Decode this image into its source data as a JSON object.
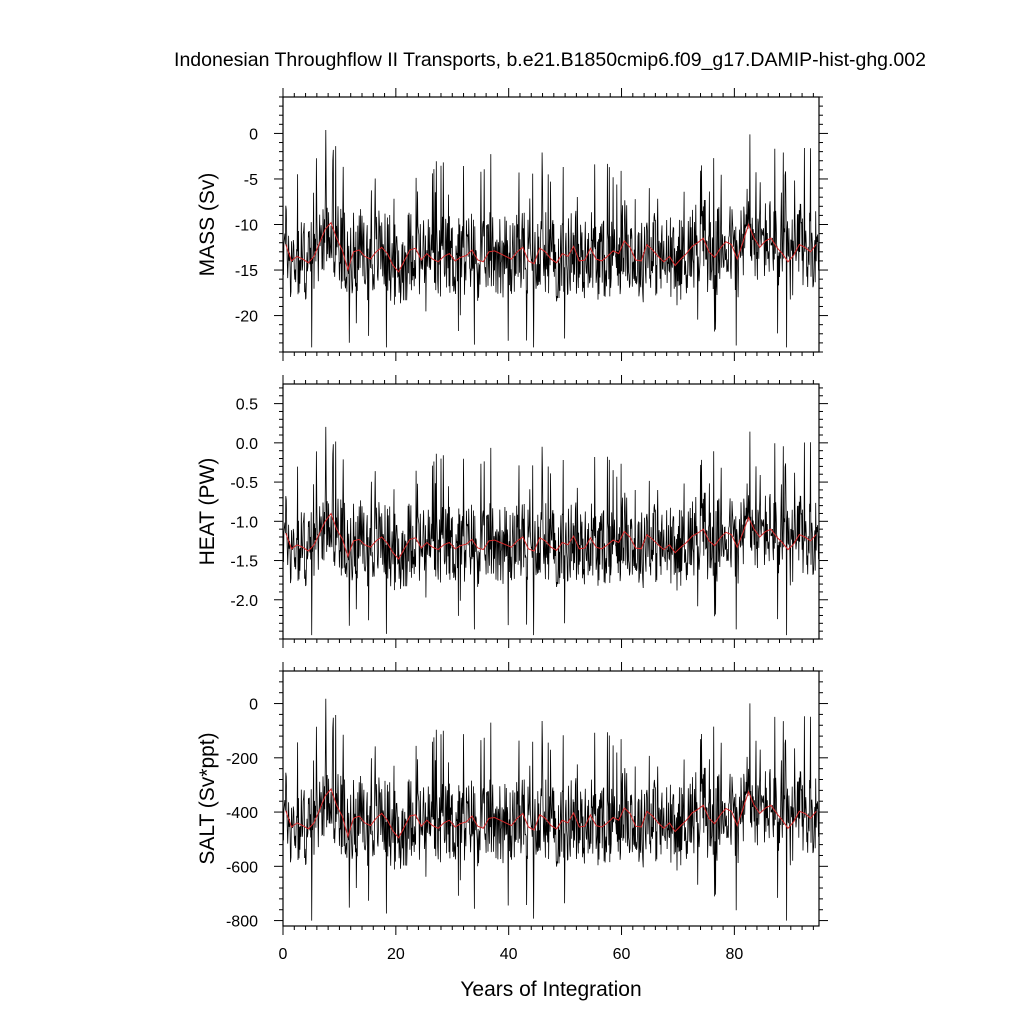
{
  "title": "Indonesian Throughflow II Transports, b.e21.B1850cmip6.f09_g17.DAMIP-hist-ghg.002",
  "colors": {
    "monthly": "#000000",
    "annual": "#d62728",
    "frame": "#000000"
  },
  "chart_data": [
    {
      "type": "line",
      "panel": "mass",
      "ylabel": "MASS (Sv)",
      "xlim": [
        0,
        95
      ],
      "ylim": [
        -24,
        4
      ],
      "xticks": [
        0,
        20,
        40,
        60,
        80
      ],
      "yticks": [
        0,
        -5,
        -10,
        -15,
        -20
      ],
      "ytick_labels": [
        "0",
        "-5",
        "-10",
        "-15",
        "-20"
      ],
      "grid": false,
      "series": [
        {
          "style": "black-thin",
          "x_start": 0,
          "x_end": 95,
          "mean": -13.5,
          "amplitude": 3.8,
          "min": -23.5,
          "max": 3.8
        },
        {
          "style": "red-thin",
          "x": [
            0.5,
            1.5,
            2.5,
            3.5,
            4.5,
            5.5,
            6.5,
            7.5,
            8.5,
            9.5,
            10.5,
            11.5,
            12.5,
            13.5,
            14.5,
            15.5,
            16.5,
            17.5,
            18.5,
            19.5,
            20.5,
            21.5,
            22.5,
            23.5,
            24.5,
            25.5,
            26.5,
            27.5,
            28.5,
            29.5,
            30.5,
            31.5,
            32.5,
            33.5,
            34.5,
            35.5,
            36.5,
            37.5,
            38.5,
            39.5,
            40.5,
            41.5,
            42.5,
            43.5,
            44.5,
            45.5,
            46.5,
            47.5,
            48.5,
            49.5,
            50.5,
            51.5,
            52.5,
            53.5,
            54.5,
            55.5,
            56.5,
            57.5,
            58.5,
            59.5,
            60.5,
            61.5,
            62.5,
            63.5,
            64.5,
            65.5,
            66.5,
            67.5,
            68.5,
            69.5,
            70.5,
            71.5,
            72.5,
            73.5,
            74.5,
            75.5,
            76.5,
            77.5,
            78.5,
            79.5,
            80.5,
            81.5,
            82.5,
            83.5,
            84.5,
            85.5,
            86.5,
            87.5,
            88.5,
            89.5,
            90.5,
            91.5,
            92.5,
            93.5,
            94.5
          ],
          "y": [
            -12.2,
            -14.0,
            -13.5,
            -13.8,
            -14.2,
            -13.5,
            -12.0,
            -10.5,
            -9.8,
            -11.5,
            -12.8,
            -15.0,
            -13.0,
            -12.8,
            -13.5,
            -13.8,
            -13.0,
            -12.5,
            -13.2,
            -14.5,
            -15.2,
            -14.0,
            -12.8,
            -12.6,
            -13.9,
            -13.2,
            -13.8,
            -14.1,
            -13.5,
            -13.2,
            -14.0,
            -13.6,
            -13.4,
            -12.8,
            -13.9,
            -14.1,
            -13.0,
            -12.9,
            -13.2,
            -13.5,
            -13.8,
            -13.0,
            -12.5,
            -14.0,
            -14.3,
            -12.6,
            -13.0,
            -13.8,
            -14.2,
            -13.2,
            -13.5,
            -12.4,
            -14.0,
            -13.9,
            -12.6,
            -13.8,
            -14.0,
            -13.5,
            -12.9,
            -13.2,
            -11.8,
            -12.5,
            -13.9,
            -14.0,
            -12.2,
            -12.8,
            -13.5,
            -14.1,
            -13.5,
            -14.5,
            -13.8,
            -13.2,
            -12.4,
            -12.0,
            -11.5,
            -13.0,
            -13.6,
            -12.6,
            -11.9,
            -12.2,
            -13.8,
            -12.0,
            -10.0,
            -11.5,
            -12.5,
            -11.8,
            -11.5,
            -12.5,
            -13.2,
            -14.1,
            -13.4,
            -12.2,
            -12.5,
            -13.0,
            -12.2
          ]
        }
      ]
    },
    {
      "type": "line",
      "panel": "heat",
      "ylabel": "HEAT (PW)",
      "xlim": [
        0,
        95
      ],
      "ylim": [
        -2.5,
        0.75
      ],
      "xticks": [
        0,
        20,
        40,
        60,
        80
      ],
      "yticks": [
        0.5,
        0.0,
        -0.5,
        -1.0,
        -1.5,
        -2.0
      ],
      "ytick_labels": [
        "0.5",
        "0.0",
        "-0.5",
        "-1.0",
        "-1.5",
        "-2.0"
      ],
      "grid": false,
      "series": [
        {
          "style": "black-thin",
          "x_start": 0,
          "x_end": 95,
          "mean": -1.3,
          "amplitude": 0.42,
          "min": -2.45,
          "max": 0.72
        },
        {
          "style": "red-thin",
          "x": [
            0.5,
            1.5,
            2.5,
            3.5,
            4.5,
            5.5,
            6.5,
            7.5,
            8.5,
            9.5,
            10.5,
            11.5,
            12.5,
            13.5,
            14.5,
            15.5,
            16.5,
            17.5,
            18.5,
            19.5,
            20.5,
            21.5,
            22.5,
            23.5,
            24.5,
            25.5,
            26.5,
            27.5,
            28.5,
            29.5,
            30.5,
            31.5,
            32.5,
            33.5,
            34.5,
            35.5,
            36.5,
            37.5,
            38.5,
            39.5,
            40.5,
            41.5,
            42.5,
            43.5,
            44.5,
            45.5,
            46.5,
            47.5,
            48.5,
            49.5,
            50.5,
            51.5,
            52.5,
            53.5,
            54.5,
            55.5,
            56.5,
            57.5,
            58.5,
            59.5,
            60.5,
            61.5,
            62.5,
            63.5,
            64.5,
            65.5,
            66.5,
            67.5,
            68.5,
            69.5,
            70.5,
            71.5,
            72.5,
            73.5,
            74.5,
            75.5,
            76.5,
            77.5,
            78.5,
            79.5,
            80.5,
            81.5,
            82.5,
            83.5,
            84.5,
            85.5,
            86.5,
            87.5,
            88.5,
            89.5,
            90.5,
            91.5,
            92.5,
            93.5,
            94.5
          ],
          "y": [
            -1.15,
            -1.35,
            -1.3,
            -1.33,
            -1.38,
            -1.3,
            -1.15,
            -1.0,
            -0.9,
            -1.1,
            -1.22,
            -1.45,
            -1.25,
            -1.23,
            -1.3,
            -1.33,
            -1.25,
            -1.2,
            -1.28,
            -1.4,
            -1.48,
            -1.35,
            -1.23,
            -1.21,
            -1.34,
            -1.27,
            -1.33,
            -1.36,
            -1.3,
            -1.27,
            -1.35,
            -1.31,
            -1.29,
            -1.23,
            -1.34,
            -1.36,
            -1.25,
            -1.24,
            -1.27,
            -1.3,
            -1.33,
            -1.25,
            -1.2,
            -1.35,
            -1.38,
            -1.21,
            -1.25,
            -1.33,
            -1.37,
            -1.27,
            -1.3,
            -1.19,
            -1.35,
            -1.34,
            -1.21,
            -1.33,
            -1.35,
            -1.3,
            -1.24,
            -1.27,
            -1.13,
            -1.2,
            -1.34,
            -1.35,
            -1.17,
            -1.23,
            -1.3,
            -1.36,
            -1.3,
            -1.4,
            -1.33,
            -1.27,
            -1.19,
            -1.15,
            -1.1,
            -1.25,
            -1.31,
            -1.21,
            -1.14,
            -1.17,
            -1.33,
            -1.15,
            -0.95,
            -1.1,
            -1.2,
            -1.13,
            -1.1,
            -1.2,
            -1.27,
            -1.36,
            -1.29,
            -1.17,
            -1.2,
            -1.25,
            -1.17
          ]
        }
      ]
    },
    {
      "type": "line",
      "panel": "salt",
      "ylabel": "SALT (Sv*ppt)",
      "xlim": [
        0,
        95
      ],
      "ylim": [
        -820,
        120
      ],
      "xticks": [
        0,
        20,
        40,
        60,
        80
      ],
      "xtick_labels": [
        "0",
        "20",
        "40",
        "60",
        "80"
      ],
      "xlabel": "Years of Integration",
      "yticks": [
        0,
        -200,
        -400,
        -600,
        -800
      ],
      "ytick_labels": [
        "0",
        "-200",
        "-400",
        "-600",
        "-800"
      ],
      "grid": false,
      "series": [
        {
          "style": "black-thin",
          "x_start": 0,
          "x_end": 95,
          "mean": -440,
          "amplitude": 125,
          "min": -800,
          "max": 115
        },
        {
          "style": "red-thin",
          "x": [
            0.5,
            1.5,
            2.5,
            3.5,
            4.5,
            5.5,
            6.5,
            7.5,
            8.5,
            9.5,
            10.5,
            11.5,
            12.5,
            13.5,
            14.5,
            15.5,
            16.5,
            17.5,
            18.5,
            19.5,
            20.5,
            21.5,
            22.5,
            23.5,
            24.5,
            25.5,
            26.5,
            27.5,
            28.5,
            29.5,
            30.5,
            31.5,
            32.5,
            33.5,
            34.5,
            35.5,
            36.5,
            37.5,
            38.5,
            39.5,
            40.5,
            41.5,
            42.5,
            43.5,
            44.5,
            45.5,
            46.5,
            47.5,
            48.5,
            49.5,
            50.5,
            51.5,
            52.5,
            53.5,
            54.5,
            55.5,
            56.5,
            57.5,
            58.5,
            59.5,
            60.5,
            61.5,
            62.5,
            63.5,
            64.5,
            65.5,
            66.5,
            67.5,
            68.5,
            69.5,
            70.5,
            71.5,
            72.5,
            73.5,
            74.5,
            75.5,
            76.5,
            77.5,
            78.5,
            79.5,
            80.5,
            81.5,
            82.5,
            83.5,
            84.5,
            85.5,
            86.5,
            87.5,
            88.5,
            89.5,
            90.5,
            91.5,
            92.5,
            93.5,
            94.5
          ],
          "y": [
            -395,
            -455,
            -440,
            -450,
            -462,
            -440,
            -390,
            -340,
            -315,
            -375,
            -415,
            -490,
            -423,
            -415,
            -440,
            -450,
            -423,
            -405,
            -430,
            -470,
            -495,
            -455,
            -415,
            -410,
            -452,
            -430,
            -450,
            -460,
            -440,
            -430,
            -455,
            -442,
            -436,
            -415,
            -452,
            -460,
            -423,
            -420,
            -430,
            -440,
            -450,
            -423,
            -405,
            -455,
            -466,
            -410,
            -423,
            -450,
            -462,
            -430,
            -440,
            -403,
            -455,
            -452,
            -410,
            -450,
            -455,
            -440,
            -420,
            -430,
            -385,
            -405,
            -452,
            -455,
            -397,
            -415,
            -440,
            -460,
            -440,
            -472,
            -450,
            -430,
            -403,
            -390,
            -375,
            -423,
            -443,
            -410,
            -387,
            -397,
            -450,
            -390,
            -325,
            -375,
            -405,
            -385,
            -375,
            -405,
            -430,
            -460,
            -436,
            -397,
            -405,
            -423,
            -397
          ]
        }
      ]
    }
  ]
}
